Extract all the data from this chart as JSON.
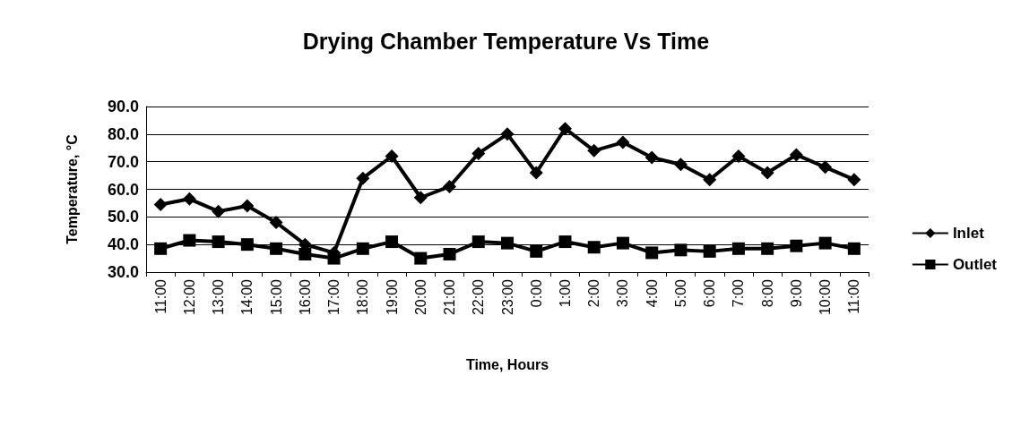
{
  "chart_data": {
    "type": "line",
    "title": "Drying Chamber Temperature Vs Time",
    "xlabel": "Time, Hours",
    "ylabel": "Temperature, °C",
    "categories": [
      "11:00",
      "12:00",
      "13:00",
      "14:00",
      "15:00",
      "16:00",
      "17:00",
      "18:00",
      "19:00",
      "20:00",
      "21:00",
      "22:00",
      "23:00",
      "0:00",
      "1:00",
      "2:00",
      "3:00",
      "4:00",
      "5:00",
      "6:00",
      "7:00",
      "8:00",
      "9:00",
      "10:00",
      "11:00"
    ],
    "series": [
      {
        "name": "Inlet",
        "color": "#000000",
        "marker": "diamond",
        "values": [
          54.5,
          56.5,
          52,
          54,
          48,
          40,
          37,
          64,
          72,
          57,
          61,
          73,
          80,
          66,
          82,
          74,
          77,
          71.5,
          69,
          63.5,
          72,
          66,
          72.5,
          68,
          63.5
        ]
      },
      {
        "name": "Outlet",
        "color": "#000000",
        "marker": "square",
        "values": [
          38.5,
          41.5,
          41,
          40,
          38.5,
          36.5,
          35,
          38.5,
          41,
          35,
          36.5,
          41,
          40.5,
          37.5,
          41,
          39,
          40.5,
          37,
          38,
          37.5,
          38.5,
          38.5,
          39.5,
          40.5,
          38.5
        ]
      }
    ],
    "ylim": [
      30,
      90
    ],
    "yticks": [
      {
        "value": 30,
        "label": "30.0"
      },
      {
        "value": 40,
        "label": "40.0"
      },
      {
        "value": 50,
        "label": "50.0"
      },
      {
        "value": 60,
        "label": "60.0"
      },
      {
        "value": 70,
        "label": "70.0"
      },
      {
        "value": 80,
        "label": "80.0"
      },
      {
        "value": 90,
        "label": "90.0"
      }
    ],
    "grid": "y",
    "legend": "right",
    "line_style": "solid"
  }
}
